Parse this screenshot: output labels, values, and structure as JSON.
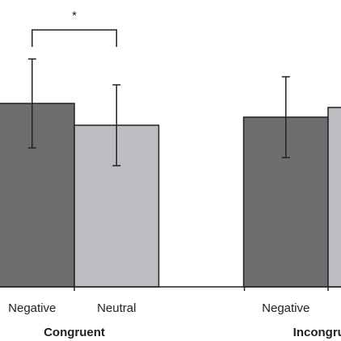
{
  "chart_data": {
    "type": "bar",
    "categories": [
      "Congruent",
      "Incongruent"
    ],
    "series": [
      {
        "name": "Negative",
        "color": "#6d6e70",
        "values": [
          227,
          210
        ],
        "errors": [
          55,
          50
        ]
      },
      {
        "name": "Neutral",
        "color": "#bcbdc0",
        "values": [
          200,
          222
        ],
        "errors": [
          50,
          null
        ]
      }
    ],
    "ylim": [
      0,
      355
    ],
    "annotations": [
      {
        "text": "*",
        "from_series": 0,
        "to_series": 1,
        "category": 0
      }
    ]
  }
}
